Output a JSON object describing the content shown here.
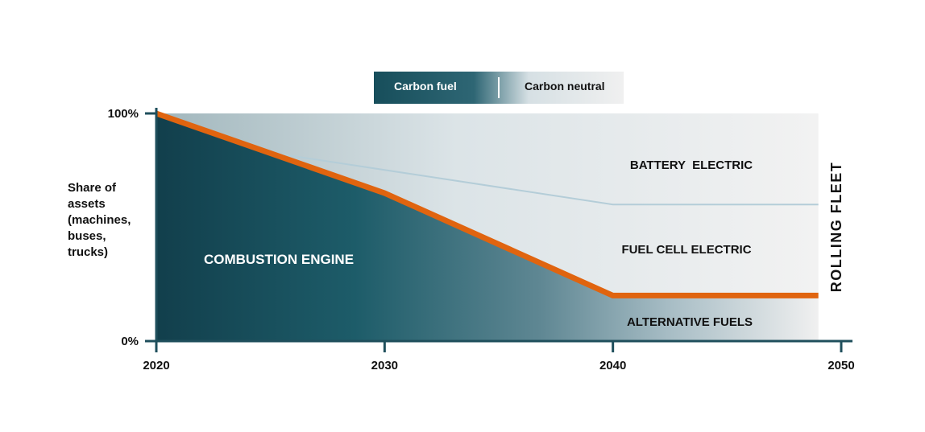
{
  "legend": {
    "left_label": "Carbon fuel",
    "right_label": "Carbon neutral"
  },
  "y_axis_label": [
    "Share of",
    "assets",
    "(machines,",
    "buses,",
    "trucks)"
  ],
  "side_label": "ROLLING FLEET",
  "colors": {
    "axis": "#1f4f5c",
    "dark_teal": "#15505d",
    "light_bg": "#f2f2f2",
    "orange": "#e0640f",
    "blue_line": "#b4cdd8"
  },
  "chart_data": {
    "type": "area",
    "x_ticks": [
      "2020",
      "2030",
      "2040",
      "2050"
    ],
    "y_ticks": [
      "0%",
      "100%"
    ],
    "xlim": [
      2020,
      2050
    ],
    "ylim": [
      0,
      100
    ],
    "regions": [
      {
        "name": "BATTERY  ELECTRIC"
      },
      {
        "name": "FUEL CELL ELECTRIC"
      },
      {
        "name": "ALTERNATIVE FUELS"
      },
      {
        "name": "COMBUSTION ENGINE"
      }
    ],
    "series": [
      {
        "name": "combustion-boundary",
        "color": "orange",
        "points": [
          [
            2020,
            100
          ],
          [
            2030,
            65
          ],
          [
            2040,
            20
          ],
          [
            2049,
            20
          ]
        ]
      },
      {
        "name": "battery-boundary",
        "color": "blue_line",
        "points": [
          [
            2025.5,
            82
          ],
          [
            2040,
            60
          ],
          [
            2049,
            60
          ]
        ]
      }
    ]
  }
}
